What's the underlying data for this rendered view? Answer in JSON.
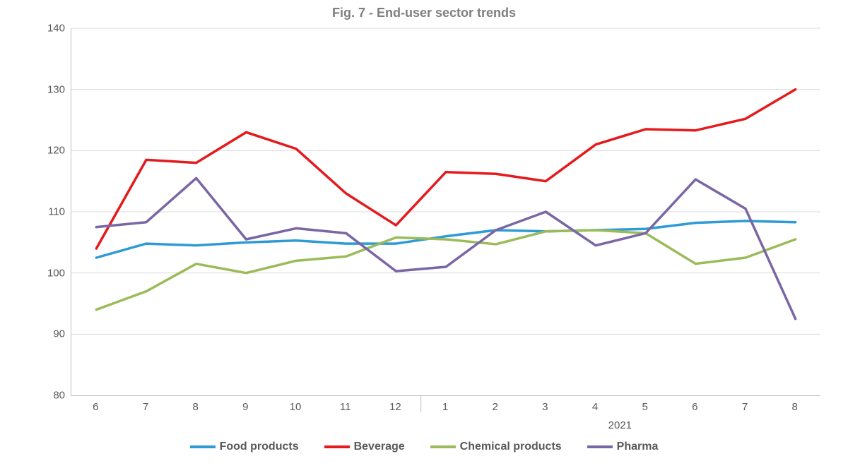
{
  "chart": {
    "type": "line",
    "title": "Fig. 7 - End-user sector trends",
    "title_fontsize": 18,
    "title_color": "#7f7f7f",
    "background_color": "#ffffff",
    "axis_color": "#bfbfbf",
    "grid_color": "#d9d9d9",
    "tick_font_color": "#595959",
    "tick_fontsize": 15,
    "legend_fontsize": 16,
    "line_width": 3.5,
    "ylim": [
      80,
      140
    ],
    "ytick_step": 10,
    "x_categories": [
      "6",
      "7",
      "8",
      "9",
      "10",
      "11",
      "12",
      "1",
      "2",
      "3",
      "4",
      "5",
      "6",
      "7",
      "8"
    ],
    "x_group_label": "2021",
    "x_group_start_index": 7,
    "x_group_end_index": 14,
    "series": [
      {
        "name": "Food products",
        "color": "#2e9bd6",
        "values": [
          102.5,
          104.8,
          104.5,
          105.0,
          105.3,
          104.8,
          104.8,
          106.0,
          107.0,
          106.8,
          107.0,
          107.2,
          108.2,
          108.5,
          108.3
        ]
      },
      {
        "name": "Beverage",
        "color": "#e41a1c",
        "values": [
          104.0,
          118.5,
          118.0,
          123.0,
          120.3,
          113.0,
          107.8,
          116.5,
          116.2,
          115.0,
          121.0,
          123.5,
          123.3,
          125.2,
          130.0
        ]
      },
      {
        "name": "Chemical products",
        "color": "#9bbb59",
        "values": [
          94.0,
          97.0,
          101.5,
          100.0,
          102.0,
          102.7,
          105.8,
          105.5,
          104.7,
          106.8,
          107.0,
          106.5,
          101.5,
          102.5,
          105.5
        ]
      },
      {
        "name": "Pharma",
        "color": "#7a66a4",
        "values": [
          107.5,
          108.3,
          115.5,
          105.5,
          107.3,
          106.5,
          100.3,
          101.0,
          107.0,
          110.0,
          104.5,
          106.5,
          115.3,
          110.5,
          92.5
        ]
      }
    ]
  }
}
